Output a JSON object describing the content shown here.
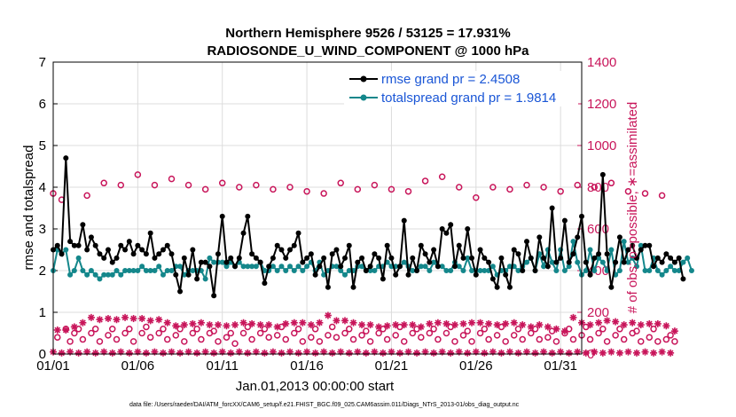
{
  "chart_data": {
    "type": "line",
    "title_line1": "Northern Hemisphere 9526 / 53125 = 17.931%",
    "title_line2": "RADIOSONDE_U_WIND_COMPONENT @ 1000 hPa",
    "xlabel": "Jan.01,2013 00:00:00 start",
    "ylabel_left": "rmse and totalspread",
    "ylabel_right": "# of obs: o=possible; ∗=assimilated",
    "footnote": "data file: /Users/raeder/DAI/ATM_forcXX/CAM6_setup/f.e21.FHIST_BGC.f09_025.CAM6assim.011/Diags_NTrS_2013-01/obs_diag_output.nc",
    "x_ticks": [
      "01/01",
      "01/06",
      "01/11",
      "01/16",
      "01/21",
      "01/26",
      "01/31"
    ],
    "x_tick_days": [
      1,
      6,
      11,
      16,
      21,
      26,
      31
    ],
    "xlim": [
      1,
      32.25
    ],
    "ylim_left": [
      0,
      7
    ],
    "yticks_left": [
      "0",
      "1",
      "2",
      "3",
      "4",
      "5",
      "6",
      "7"
    ],
    "ylim_right": [
      0,
      1400
    ],
    "yticks_right": [
      "0",
      "200",
      "400",
      "600",
      "800",
      "1000",
      "1200",
      "1400"
    ],
    "time_step_days": 0.25,
    "time_start_day": 1.0,
    "series": [
      {
        "name": "rmse grand pr = 2.4508",
        "color": "#000000",
        "axis": "left",
        "values": [
          2.5,
          2.6,
          2.4,
          4.7,
          2.7,
          2.6,
          2.6,
          3.1,
          2.5,
          2.8,
          2.6,
          2.4,
          2.3,
          2.5,
          2.2,
          2.3,
          2.6,
          2.5,
          2.7,
          2.4,
          2.6,
          2.5,
          2.4,
          2.9,
          2.3,
          2.4,
          2.5,
          2.6,
          2.4,
          1.9,
          1.5,
          2.3,
          1.9,
          2.5,
          1.8,
          2.2,
          2.2,
          2.1,
          1.4,
          2.4,
          3.3,
          2.2,
          2.3,
          2.1,
          2.3,
          2.9,
          3.3,
          2.4,
          2.3,
          2.2,
          1.7,
          2.1,
          2.3,
          2.6,
          2.5,
          2.3,
          2.5,
          2.6,
          2.9,
          2.2,
          2.3,
          2.4,
          1.9,
          2.1,
          2.3,
          1.6,
          2.4,
          2.5,
          2.1,
          2.3,
          2.6,
          1.6,
          2.2,
          2.3,
          2.0,
          2.1,
          2.4,
          2.3,
          1.8,
          2.6,
          2.3,
          1.9,
          2.1,
          3.2,
          1.9,
          2.3,
          2.0,
          2.6,
          2.4,
          2.2,
          2.5,
          2.1,
          3.0,
          2.9,
          3.1,
          2.1,
          2.6,
          2.3,
          3.0,
          2.3,
          1.9,
          2.5,
          2.3,
          2.2,
          1.8,
          1.6,
          2.3,
          1.9,
          1.6,
          2.5,
          2.4,
          2.0,
          2.7,
          2.3,
          2.0,
          2.8,
          2.3,
          2.1,
          3.5,
          2.2,
          2.3,
          3.2,
          2.2,
          2.4,
          2.8,
          3.3,
          2.2,
          1.9,
          2.3,
          2.4,
          4.3,
          2.4,
          1.6,
          2.2,
          2.8,
          2.2,
          2.5,
          2.6,
          2.3,
          2.5,
          2.6,
          2.6,
          2.1,
          2.3,
          2.2,
          2.4,
          2.3,
          2.2,
          2.3,
          1.8
        ],
        "marker": "filled-circle"
      },
      {
        "name": "totalspread grand pr = 1.9814",
        "color": "#14878b",
        "axis": "left",
        "values": [
          2.0,
          2.5,
          2.4,
          2.5,
          1.9,
          2.0,
          2.3,
          2.0,
          1.9,
          2.0,
          1.9,
          1.8,
          1.9,
          1.9,
          1.9,
          2.0,
          1.9,
          2.0,
          2.0,
          2.0,
          2.0,
          2.1,
          2.0,
          2.0,
          2.0,
          2.1,
          1.9,
          2.0,
          2.0,
          2.1,
          2.1,
          1.9,
          2.0,
          2.0,
          2.0,
          2.0,
          1.8,
          2.3,
          2.2,
          2.2,
          2.2,
          2.1,
          2.2,
          2.1,
          2.2,
          2.1,
          2.1,
          2.1,
          2.1,
          2.2,
          2.0,
          2.0,
          2.1,
          2.0,
          2.1,
          2.0,
          2.1,
          2.0,
          2.1,
          2.0,
          2.1,
          2.2,
          2.0,
          2.2,
          1.9,
          2.0,
          2.1,
          2.1,
          2.0,
          1.9,
          2.0,
          2.0,
          2.1,
          2.1,
          2.0,
          2.0,
          2.0,
          2.1,
          2.1,
          2.2,
          2.1,
          2.1,
          2.1,
          2.2,
          2.1,
          2.0,
          2.0,
          2.1,
          2.1,
          2.0,
          2.2,
          2.1,
          2.1,
          2.0,
          2.0,
          2.2,
          2.1,
          2.0,
          2.3,
          2.0,
          2.0,
          2.0,
          2.0,
          2.0,
          2.1,
          1.9,
          2.0,
          2.0,
          2.1,
          2.1,
          2.0,
          2.1,
          2.2,
          2.3,
          2.0,
          2.4,
          2.1,
          2.5,
          2.2,
          2.0,
          2.5,
          2.0,
          2.1,
          2.7,
          2.2,
          1.9,
          2.0,
          2.5,
          2.0,
          2.3,
          2.2,
          2.0,
          2.5,
          1.9,
          2.0,
          2.7,
          2.2,
          2.3,
          2.1,
          2.6,
          2.0,
          2.0,
          2.3,
          2.0,
          1.9,
          2.0,
          2.1,
          2.0,
          2.0,
          2.2,
          2.3,
          2.0
        ],
        "marker": "filled-circle"
      },
      {
        "name": "possible",
        "color": "#c8155a",
        "axis": "right",
        "marker": "open-circle",
        "values": [
          770,
          80,
          740,
          120,
          60,
          100,
          120,
          70,
          760,
          100,
          120,
          60,
          820,
          90,
          120,
          70,
          810,
          100,
          120,
          60,
          860,
          100,
          130,
          80,
          810,
          100,
          120,
          70,
          840,
          90,
          120,
          60,
          810,
          100,
          120,
          70,
          790,
          100,
          110,
          60,
          820,
          80,
          100,
          50,
          800,
          100,
          130,
          70,
          810,
          100,
          120,
          80,
          790,
          90,
          130,
          70,
          800,
          100,
          120,
          60,
          780,
          80,
          120,
          60,
          770,
          90,
          130,
          80,
          820,
          100,
          120,
          70,
          790,
          90,
          110,
          60,
          810,
          100,
          120,
          70,
          790,
          90,
          130,
          60,
          780,
          100,
          120,
          80,
          830,
          100,
          120,
          70,
          850,
          100,
          130,
          60,
          800,
          90,
          110,
          60,
          750,
          100,
          120,
          70,
          800,
          90,
          130,
          60,
          790,
          90,
          120,
          70,
          810,
          100,
          120,
          70,
          800,
          80,
          110,
          60,
          780,
          100,
          120,
          70,
          810,
          90,
          130,
          70,
          800,
          100,
          120,
          60,
          820,
          90,
          120,
          70,
          780,
          100,
          110,
          60,
          770,
          80,
          120,
          60,
          760,
          70,
          90,
          60
        ]
      },
      {
        "name": "assimilated",
        "color": "#c8155a",
        "axis": "right",
        "marker": "asterisk",
        "values": [
          10,
          115,
          5,
          115,
          10,
          130,
          5,
          150,
          10,
          175,
          5,
          165,
          10,
          170,
          5,
          165,
          10,
          175,
          5,
          170,
          10,
          170,
          5,
          160,
          10,
          165,
          5,
          150,
          10,
          135,
          5,
          140,
          10,
          145,
          5,
          150,
          10,
          140,
          5,
          140,
          10,
          135,
          5,
          140,
          10,
          150,
          5,
          145,
          10,
          140,
          5,
          140,
          10,
          130,
          5,
          145,
          10,
          150,
          5,
          150,
          10,
          140,
          5,
          150,
          10,
          185,
          5,
          160,
          10,
          160,
          5,
          150,
          10,
          140,
          5,
          140,
          10,
          130,
          5,
          135,
          10,
          140,
          5,
          140,
          10,
          140,
          5,
          130,
          10,
          145,
          5,
          150,
          10,
          145,
          5,
          140,
          10,
          145,
          5,
          150,
          10,
          150,
          5,
          145,
          10,
          140,
          5,
          145,
          10,
          150,
          5,
          140,
          10,
          130,
          5,
          140,
          10,
          130,
          5,
          120,
          10,
          110,
          5,
          175,
          10,
          150,
          5,
          140,
          10,
          150,
          5,
          160,
          10,
          155,
          5,
          140,
          10,
          150,
          5,
          140,
          10,
          145,
          5,
          145,
          10,
          135,
          5,
          110
        ]
      }
    ],
    "legend_position": "top-right",
    "grid": true
  }
}
